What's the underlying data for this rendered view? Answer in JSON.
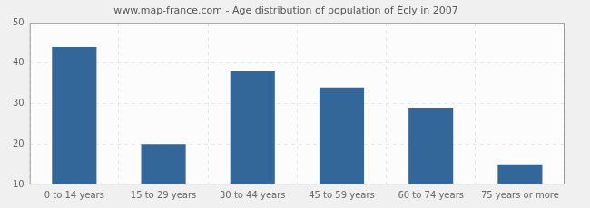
{
  "chart_data": {
    "type": "bar",
    "title": "www.map-france.com - Age distribution of population of Écly in 2007",
    "categories": [
      "0 to 14 years",
      "15 to 29 years",
      "30 to 44 years",
      "45 to 59 years",
      "60 to 74 years",
      "75 years or more"
    ],
    "values": [
      44,
      20,
      38,
      34,
      29,
      15
    ],
    "color": "#336699",
    "ylim": [
      10,
      50
    ],
    "yticks": [
      10,
      20,
      30,
      40,
      50
    ],
    "grid": true
  }
}
